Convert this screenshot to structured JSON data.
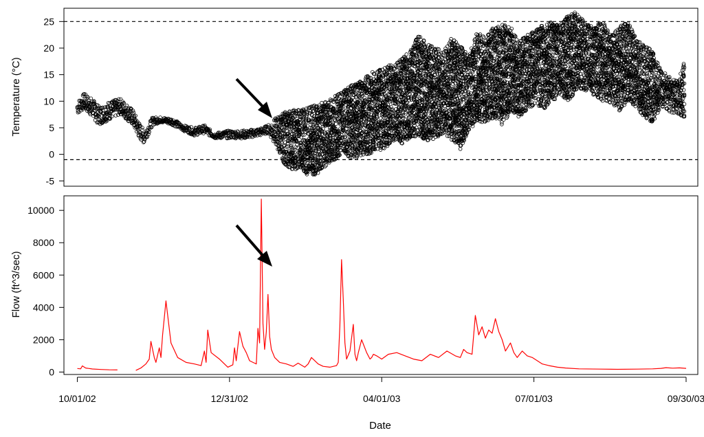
{
  "chart_data": [
    {
      "type": "scatter",
      "title": "",
      "xlabel": "",
      "ylabel": "Temperature (°C)",
      "ylim": [
        -6.0,
        27.5
      ],
      "xlim": [
        "2002-09-23",
        "2003-10-07"
      ],
      "yticks": [
        -5,
        0,
        5,
        10,
        15,
        20,
        25
      ],
      "reference_lines": [
        {
          "y": 25,
          "style": "dashed"
        },
        {
          "y": -1,
          "style": "dashed"
        }
      ],
      "marker": "open-circle",
      "series": [
        {
          "color": "#000000",
          "description_points_note": "daily min/max envelope of dense sub-daily readings",
          "x": [
            "2002-10-01",
            "2002-10-05",
            "2002-10-10",
            "2002-10-14",
            "2002-10-20",
            "2002-10-27",
            "2002-11-03",
            "2002-11-07",
            "2002-11-10",
            "2002-11-15",
            "2002-11-20",
            "2002-11-27",
            "2002-12-03",
            "2002-12-10",
            "2002-12-16",
            "2002-12-22",
            "2002-12-31",
            "2003-01-10",
            "2003-01-19",
            "2003-01-23",
            "2003-01-28",
            "2003-02-02",
            "2003-02-07",
            "2003-02-12",
            "2003-02-17",
            "2003-02-22",
            "2003-02-27",
            "2003-03-04",
            "2003-03-09",
            "2003-03-14",
            "2003-03-19",
            "2003-03-24",
            "2003-03-29",
            "2003-04-03",
            "2003-04-08",
            "2003-04-13",
            "2003-04-18",
            "2003-04-23",
            "2003-04-28",
            "2003-05-03",
            "2003-05-08",
            "2003-05-13",
            "2003-05-18",
            "2003-05-23",
            "2003-05-28",
            "2003-06-02",
            "2003-06-07",
            "2003-06-12",
            "2003-06-17",
            "2003-06-22",
            "2003-06-27",
            "2003-07-02",
            "2003-07-07",
            "2003-07-12",
            "2003-07-17",
            "2003-07-22",
            "2003-07-27",
            "2003-08-01",
            "2003-08-06",
            "2003-08-11",
            "2003-08-16",
            "2003-08-21",
            "2003-08-26",
            "2003-08-31",
            "2003-09-05",
            "2003-09-10",
            "2003-09-15",
            "2003-09-20",
            "2003-09-25",
            "2003-09-29"
          ],
          "y_min": [
            7.5,
            8.5,
            7.0,
            5.5,
            6.5,
            7.5,
            5.5,
            3.0,
            2.0,
            5.5,
            6.0,
            5.5,
            4.5,
            3.5,
            4.0,
            3.0,
            3.0,
            3.0,
            3.5,
            4.0,
            1.5,
            -2.0,
            -3.0,
            -2.5,
            -4.5,
            -3.5,
            -2.0,
            -1.0,
            0.5,
            -1.0,
            -0.5,
            0.0,
            0.5,
            1.0,
            2.5,
            2.0,
            3.0,
            3.5,
            2.5,
            3.0,
            4.0,
            2.5,
            1.0,
            4.5,
            6.0,
            5.5,
            7.0,
            5.5,
            8.0,
            7.0,
            8.5,
            9.5,
            8.5,
            10.0,
            11.0,
            10.0,
            12.5,
            12.0,
            11.0,
            10.0,
            9.5,
            8.0,
            10.0,
            9.0,
            7.0,
            6.0,
            9.0,
            8.0,
            7.5,
            7.0
          ],
          "y_max": [
            10.0,
            11.5,
            10.5,
            9.0,
            10.0,
            10.5,
            8.5,
            6.0,
            4.5,
            7.0,
            7.0,
            6.8,
            5.5,
            5.0,
            5.5,
            4.0,
            4.5,
            4.5,
            5.0,
            5.5,
            7.0,
            8.0,
            8.5,
            8.5,
            9.0,
            9.5,
            10.0,
            11.0,
            12.0,
            13.0,
            14.0,
            15.0,
            16.0,
            16.5,
            17.0,
            18.0,
            19.5,
            22.5,
            21.0,
            20.0,
            19.5,
            22.0,
            20.5,
            18.5,
            23.0,
            22.0,
            24.0,
            24.5,
            24.0,
            21.5,
            22.5,
            23.5,
            24.5,
            25.0,
            24.5,
            26.5,
            26.8,
            24.5,
            24.0,
            25.0,
            22.5,
            24.0,
            25.0,
            22.0,
            20.5,
            19.5,
            16.0,
            15.0,
            14.0,
            17.5
          ]
        }
      ],
      "annotations": [
        {
          "type": "arrow",
          "points_to_date": "2003-01-19",
          "points_to_y": 6.5
        }
      ]
    },
    {
      "type": "line",
      "title": "",
      "xlabel": "Date",
      "ylabel": "Flow (ft^3/sec)",
      "ylim": [
        -150,
        10900
      ],
      "xlim": [
        "2002-09-23",
        "2003-10-07"
      ],
      "yticks": [
        0,
        2000,
        4000,
        6000,
        8000,
        10000
      ],
      "xticks": [
        {
          "date": "2002-10-01",
          "label": "10/01/02"
        },
        {
          "date": "2002-12-31",
          "label": "12/31/02"
        },
        {
          "date": "2003-04-01",
          "label": "04/01/03"
        },
        {
          "date": "2003-07-01",
          "label": "07/01/03"
        },
        {
          "date": "2003-09-30",
          "label": "09/30/03"
        }
      ],
      "series": [
        {
          "color": "#ff0000",
          "segments": [
            {
              "x": [
                "2002-10-01",
                "2002-10-03",
                "2002-10-04",
                "2002-10-06",
                "2002-10-10",
                "2002-10-15",
                "2002-10-20",
                "2002-10-25"
              ],
              "y": [
                220,
                200,
                380,
                250,
                190,
                160,
                140,
                130
              ]
            },
            {
              "x": [
                "2002-11-05",
                "2002-11-08",
                "2002-11-11",
                "2002-11-13",
                "2002-11-14",
                "2002-11-16",
                "2002-11-17",
                "2002-11-19",
                "2002-11-20",
                "2002-11-21",
                "2002-11-23",
                "2002-11-26",
                "2002-11-30",
                "2002-12-05",
                "2002-12-10",
                "2002-12-14",
                "2002-12-16",
                "2002-12-17",
                "2002-12-18",
                "2002-12-20",
                "2002-12-25",
                "2002-12-28",
                "2002-12-30",
                "2003-01-02",
                "2003-01-03",
                "2003-01-04",
                "2003-01-06",
                "2003-01-08",
                "2003-01-10",
                "2003-01-12",
                "2003-01-15",
                "2003-01-16",
                "2003-01-17",
                "2003-01-18",
                "2003-01-19",
                "2003-01-20",
                "2003-01-21",
                "2003-01-22",
                "2003-01-23",
                "2003-01-24",
                "2003-01-25",
                "2003-01-27",
                "2003-01-30",
                "2003-02-03",
                "2003-02-07",
                "2003-02-10",
                "2003-02-14",
                "2003-02-16",
                "2003-02-18",
                "2003-02-22",
                "2003-02-25",
                "2003-03-01",
                "2003-03-05",
                "2003-03-06",
                "2003-03-07",
                "2003-03-08",
                "2003-03-09",
                "2003-03-10",
                "2003-03-11",
                "2003-03-13",
                "2003-03-15",
                "2003-03-16",
                "2003-03-17",
                "2003-03-18",
                "2003-03-20",
                "2003-03-23",
                "2003-03-25",
                "2003-03-26",
                "2003-03-27",
                "2003-03-29",
                "2003-04-01",
                "2003-04-05",
                "2003-04-10",
                "2003-04-15",
                "2003-04-20",
                "2003-04-25",
                "2003-04-30",
                "2003-05-05",
                "2003-05-10",
                "2003-05-15",
                "2003-05-18",
                "2003-05-20",
                "2003-05-22",
                "2003-05-25",
                "2003-05-27",
                "2003-05-29",
                "2003-05-31",
                "2003-06-02",
                "2003-06-04",
                "2003-06-06",
                "2003-06-08",
                "2003-06-10",
                "2003-06-12",
                "2003-06-14",
                "2003-06-17",
                "2003-06-19",
                "2003-06-21",
                "2003-06-24",
                "2003-06-27",
                "2003-06-30",
                "2003-07-03",
                "2003-07-06",
                "2003-07-10",
                "2003-07-15",
                "2003-07-20",
                "2003-07-28",
                "2003-08-10",
                "2003-08-20",
                "2003-09-01",
                "2003-09-10",
                "2003-09-15",
                "2003-09-18",
                "2003-09-22",
                "2003-09-26",
                "2003-09-30"
              ],
              "y": [
                100,
                250,
                500,
                800,
                1900,
                900,
                600,
                1500,
                900,
                2300,
                4400,
                1800,
                900,
                600,
                500,
                400,
                1300,
                600,
                2600,
                1200,
                800,
                500,
                300,
                450,
                1500,
                700,
                2500,
                1600,
                1200,
                700,
                550,
                500,
                2700,
                1800,
                10700,
                3000,
                1400,
                2500,
                4800,
                2200,
                1400,
                900,
                600,
                500,
                350,
                550,
                300,
                500,
                900,
                500,
                350,
                300,
                400,
                600,
                2900,
                6950,
                4500,
                1800,
                800,
                1300,
                2950,
                1100,
                700,
                1200,
                2000,
                1200,
                800,
                900,
                1100,
                1000,
                800,
                1100,
                1200,
                1000,
                800,
                700,
                1100,
                900,
                1300,
                1000,
                900,
                1400,
                1200,
                1100,
                3500,
                2300,
                2800,
                2100,
                2600,
                2400,
                3300,
                2500,
                2000,
                1300,
                1800,
                1200,
                900,
                1300,
                1000,
                900,
                700,
                500,
                400,
                300,
                250,
                200,
                180,
                170,
                180,
                200,
                230,
                270,
                240,
                260,
                230
              ]
            }
          ]
        }
      ],
      "annotations": [
        {
          "type": "arrow",
          "points_to_date": "2003-01-19",
          "points_to_y": 6600
        }
      ]
    }
  ]
}
